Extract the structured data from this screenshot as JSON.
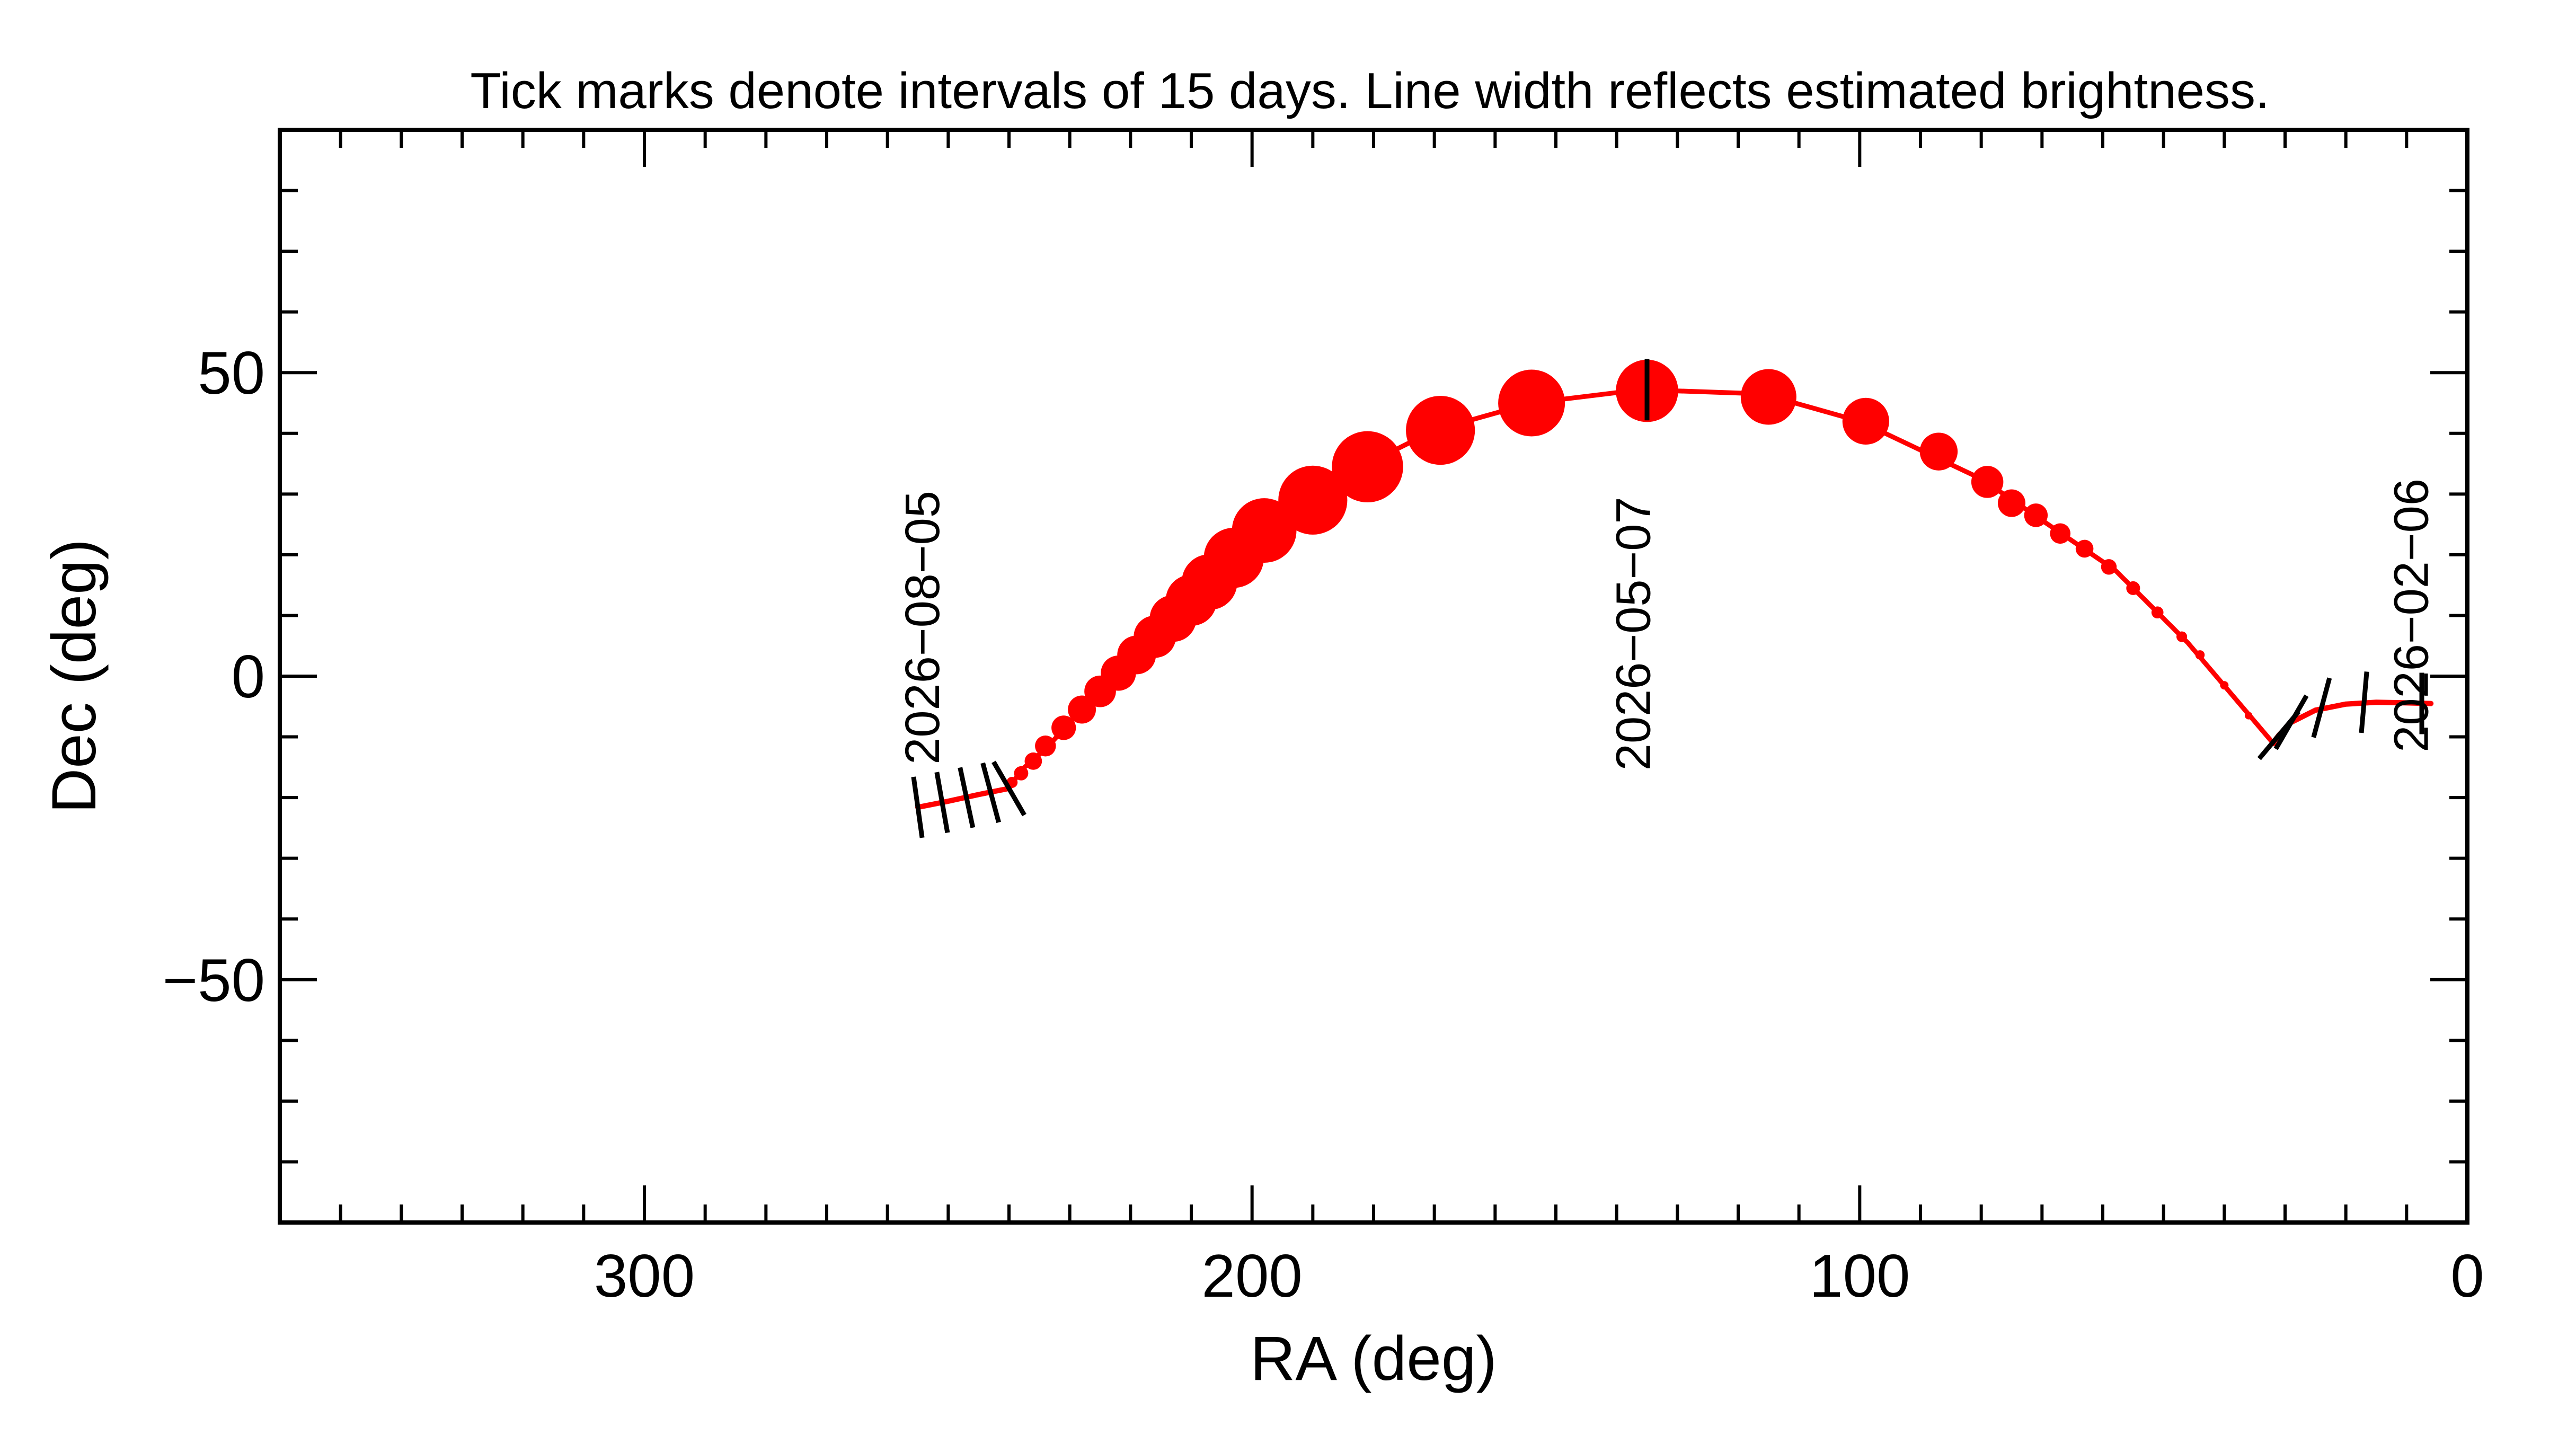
{
  "chart_data": {
    "type": "scatter",
    "title": "Tick marks denote intervals of 15 days.  Line width reflects estimated brightness.",
    "xlabel": "RA (deg)",
    "ylabel": "Dec (deg)",
    "xlim": [
      360,
      0
    ],
    "ylim": [
      -90,
      90
    ],
    "x_ticks": [
      300,
      200,
      100,
      0
    ],
    "y_ticks": [
      50,
      0,
      -50
    ],
    "x_tick_labels": [
      "300",
      "200",
      "100",
      "0"
    ],
    "y_tick_labels": [
      "50",
      "0",
      "−50"
    ],
    "x_minor_step": 10,
    "y_minor_step": 10,
    "colors": {
      "track": "#ff0000",
      "ticks": "#000000",
      "axes": "#000000"
    },
    "faint_segments": [
      [
        [
          6,
          -4.5
        ],
        [
          10,
          -4.4
        ],
        [
          15,
          -4.3
        ],
        [
          20,
          -4.6
        ],
        [
          25,
          -5.6
        ],
        [
          29,
          -7.6
        ],
        [
          31,
          -9.7
        ],
        [
          32,
          -11
        ]
      ],
      [
        [
          240,
          -18.5
        ],
        [
          245,
          -19.5
        ],
        [
          250,
          -20.6
        ],
        [
          255,
          -21.6
        ]
      ]
    ],
    "bright_path": [
      [
        32,
        -11
      ],
      [
        46,
        5.5
      ],
      [
        58,
        17.5
      ],
      [
        80,
        32.5
      ],
      [
        100,
        42
      ],
      [
        116,
        46.5
      ],
      [
        136,
        47.2
      ],
      [
        154,
        45
      ],
      [
        170,
        40.5
      ],
      [
        182,
        34.5
      ],
      [
        191,
        29
      ],
      [
        198,
        24
      ],
      [
        203,
        19.5
      ],
      [
        208,
        15
      ],
      [
        212,
        11
      ],
      [
        216,
        7
      ],
      [
        222,
        0.5
      ],
      [
        228,
        -5.5
      ],
      [
        234,
        -12
      ],
      [
        238,
        -15.5
      ],
      [
        240,
        -18.5
      ]
    ],
    "brightness_markers": [
      {
        "ra": 32,
        "dec": -11,
        "size": 1.5
      },
      {
        "ra": 36,
        "dec": -6.5,
        "size": 1.7
      },
      {
        "ra": 40,
        "dec": -1.5,
        "size": 1.9
      },
      {
        "ra": 44,
        "dec": 3.5,
        "size": 2.1
      },
      {
        "ra": 47,
        "dec": 6.5,
        "size": 2.4
      },
      {
        "ra": 51,
        "dec": 10.5,
        "size": 2.7
      },
      {
        "ra": 55,
        "dec": 14.5,
        "size": 3.1
      },
      {
        "ra": 59,
        "dec": 18,
        "size": 3.5
      },
      {
        "ra": 63,
        "dec": 21,
        "size": 4
      },
      {
        "ra": 67,
        "dec": 23.5,
        "size": 4.6
      },
      {
        "ra": 71,
        "dec": 26.5,
        "size": 5.3
      },
      {
        "ra": 75,
        "dec": 28.5,
        "size": 6.2
      },
      {
        "ra": 79,
        "dec": 32,
        "size": 7.2
      },
      {
        "ra": 87,
        "dec": 37,
        "size": 8.5
      },
      {
        "ra": 99,
        "dec": 42,
        "size": 10.5
      },
      {
        "ra": 115,
        "dec": 46,
        "size": 12.5
      },
      {
        "ra": 135,
        "dec": 47,
        "size": 14
      },
      {
        "ra": 154,
        "dec": 45,
        "size": 15
      },
      {
        "ra": 169,
        "dec": 40.5,
        "size": 15.5
      },
      {
        "ra": 181,
        "dec": 34.5,
        "size": 16
      },
      {
        "ra": 190,
        "dec": 29,
        "size": 15.5
      },
      {
        "ra": 198,
        "dec": 24,
        "size": 14.5
      },
      {
        "ra": 203,
        "dec": 19.5,
        "size": 13.5
      },
      {
        "ra": 207,
        "dec": 15.5,
        "size": 12.5
      },
      {
        "ra": 210,
        "dec": 12.5,
        "size": 11.5
      },
      {
        "ra": 213,
        "dec": 9.5,
        "size": 10.5
      },
      {
        "ra": 216,
        "dec": 6.5,
        "size": 9.5
      },
      {
        "ra": 219,
        "dec": 3.5,
        "size": 8.7
      },
      {
        "ra": 222,
        "dec": 0.5,
        "size": 7.9
      },
      {
        "ra": 225,
        "dec": -2.5,
        "size": 7.1
      },
      {
        "ra": 228,
        "dec": -5.5,
        "size": 6.3
      },
      {
        "ra": 231,
        "dec": -8.5,
        "size": 5.5
      },
      {
        "ra": 234,
        "dec": -11.5,
        "size": 4.7
      },
      {
        "ra": 236,
        "dec": -14,
        "size": 3.9
      },
      {
        "ra": 238,
        "dec": -16,
        "size": 3.2
      },
      {
        "ra": 239.5,
        "dec": -17.5,
        "size": 2.5
      }
    ],
    "interval_ticks": [
      {
        "ra": 7.5,
        "dec": -4.5,
        "angle": 90
      },
      {
        "ra": 17,
        "dec": -4.3,
        "angle": 85
      },
      {
        "ra": 24,
        "dec": -5.2,
        "angle": 75
      },
      {
        "ra": 29,
        "dec": -7.6,
        "angle": 60
      },
      {
        "ra": 31,
        "dec": -9.7,
        "angle": 50
      },
      {
        "ra": 135,
        "dec": 47.2,
        "angle": 90
      },
      {
        "ra": 240,
        "dec": -18.5,
        "angle": -60
      },
      {
        "ra": 243,
        "dec": -19.2,
        "angle": -75
      },
      {
        "ra": 247,
        "dec": -20,
        "angle": -78
      },
      {
        "ra": 251,
        "dec": -20.8,
        "angle": -80
      },
      {
        "ra": 255,
        "dec": -21.6,
        "angle": -82
      }
    ],
    "date_labels": [
      {
        "text": "2026−02−06",
        "ra": 6.5,
        "dec": 10
      },
      {
        "text": "2026−05−07",
        "ra": 134.5,
        "dec": 7
      },
      {
        "text": "2026−08−05",
        "ra": 251.5,
        "dec": 8
      }
    ]
  }
}
